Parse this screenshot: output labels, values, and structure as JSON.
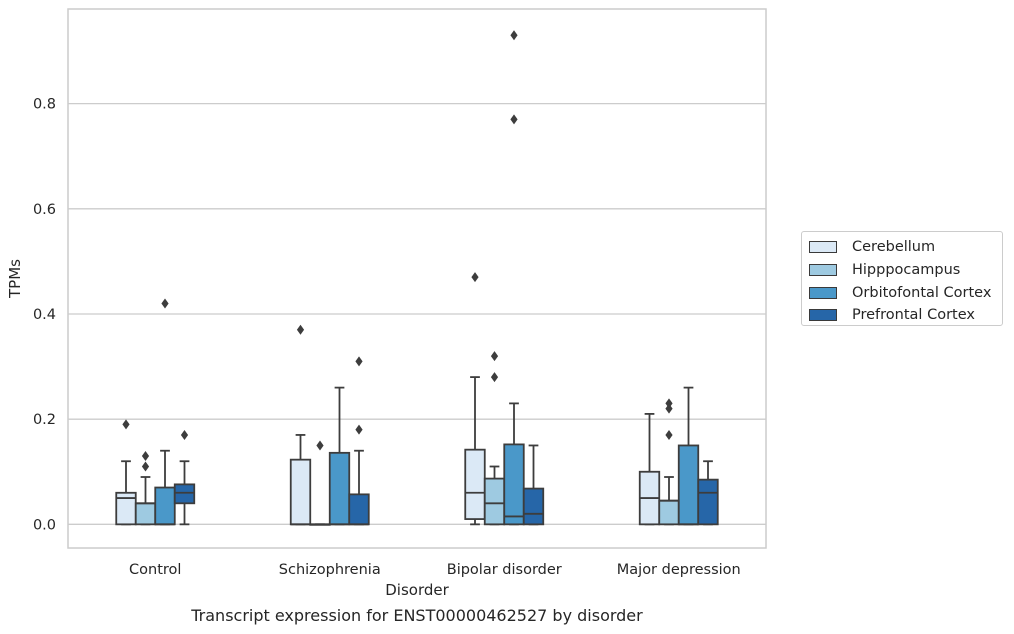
{
  "caption": "Transcript expression for ENST00000462527 by disorder",
  "chart_data": {
    "type": "box",
    "title": "",
    "xlabel": "Disorder",
    "ylabel": "TPMs",
    "ylim": [
      -0.045,
      0.98
    ],
    "yticks": [
      0.0,
      0.2,
      0.4,
      0.6,
      0.8
    ],
    "ytick_labels": [
      "0.0",
      "0.2",
      "0.4",
      "0.6",
      "0.8"
    ],
    "grid": "horizontal",
    "legend_position": "right",
    "categories": [
      "Control",
      "Schizophrenia",
      "Bipolar disorder",
      "Major depression"
    ],
    "series": [
      {
        "name": "Cerebellum",
        "color": "#dbe9f6",
        "boxes": [
          {
            "whisker_low": 0.0,
            "q1": 0.0,
            "median": 0.05,
            "q3": 0.06,
            "whisker_high": 0.12,
            "outliers": [
              0.19
            ]
          },
          {
            "whisker_low": 0.0,
            "q1": 0.0,
            "median": 0.0,
            "q3": 0.123,
            "whisker_high": 0.17,
            "outliers": [
              0.37
            ]
          },
          {
            "whisker_low": 0.0,
            "q1": 0.01,
            "median": 0.06,
            "q3": 0.142,
            "whisker_high": 0.28,
            "outliers": [
              0.47
            ]
          },
          {
            "whisker_low": 0.0,
            "q1": 0.0,
            "median": 0.05,
            "q3": 0.1,
            "whisker_high": 0.21,
            "outliers": []
          }
        ]
      },
      {
        "name": "Hipppocampus",
        "color": "#9ecae1",
        "boxes": [
          {
            "whisker_low": 0.0,
            "q1": 0.0,
            "median": 0.04,
            "q3": 0.04,
            "whisker_high": 0.09,
            "outliers": [
              0.11,
              0.13
            ]
          },
          {
            "whisker_low": 0.0,
            "q1": 0.0,
            "median": 0.0,
            "q3": 0.0,
            "whisker_high": 0.0,
            "outliers": [
              0.15
            ]
          },
          {
            "whisker_low": 0.0,
            "q1": 0.0,
            "median": 0.04,
            "q3": 0.087,
            "whisker_high": 0.11,
            "outliers": [
              0.28,
              0.32
            ]
          },
          {
            "whisker_low": 0.0,
            "q1": 0.0,
            "median": 0.045,
            "q3": 0.045,
            "whisker_high": 0.09,
            "outliers": [
              0.17,
              0.22,
              0.23
            ]
          }
        ]
      },
      {
        "name": "Orbitofontal Cortex",
        "color": "#4a98c9",
        "boxes": [
          {
            "whisker_low": 0.0,
            "q1": 0.0,
            "median": 0.0,
            "q3": 0.07,
            "whisker_high": 0.14,
            "outliers": [
              0.42
            ]
          },
          {
            "whisker_low": 0.0,
            "q1": 0.0,
            "median": 0.0,
            "q3": 0.136,
            "whisker_high": 0.26,
            "outliers": []
          },
          {
            "whisker_low": 0.0,
            "q1": 0.0,
            "median": 0.015,
            "q3": 0.152,
            "whisker_high": 0.23,
            "outliers": [
              0.77,
              0.93
            ]
          },
          {
            "whisker_low": 0.0,
            "q1": 0.0,
            "median": 0.0,
            "q3": 0.15,
            "whisker_high": 0.26,
            "outliers": []
          }
        ]
      },
      {
        "name": "Prefrontal Cortex",
        "color": "#2666a8",
        "boxes": [
          {
            "whisker_low": 0.0,
            "q1": 0.04,
            "median": 0.06,
            "q3": 0.076,
            "whisker_high": 0.12,
            "outliers": [
              0.17
            ]
          },
          {
            "whisker_low": 0.0,
            "q1": 0.0,
            "median": 0.0,
            "q3": 0.057,
            "whisker_high": 0.14,
            "outliers": [
              0.18,
              0.31
            ]
          },
          {
            "whisker_low": 0.0,
            "q1": 0.0,
            "median": 0.02,
            "q3": 0.068,
            "whisker_high": 0.15,
            "outliers": []
          },
          {
            "whisker_low": 0.0,
            "q1": 0.0,
            "median": 0.06,
            "q3": 0.085,
            "whisker_high": 0.12,
            "outliers": []
          }
        ]
      }
    ]
  }
}
